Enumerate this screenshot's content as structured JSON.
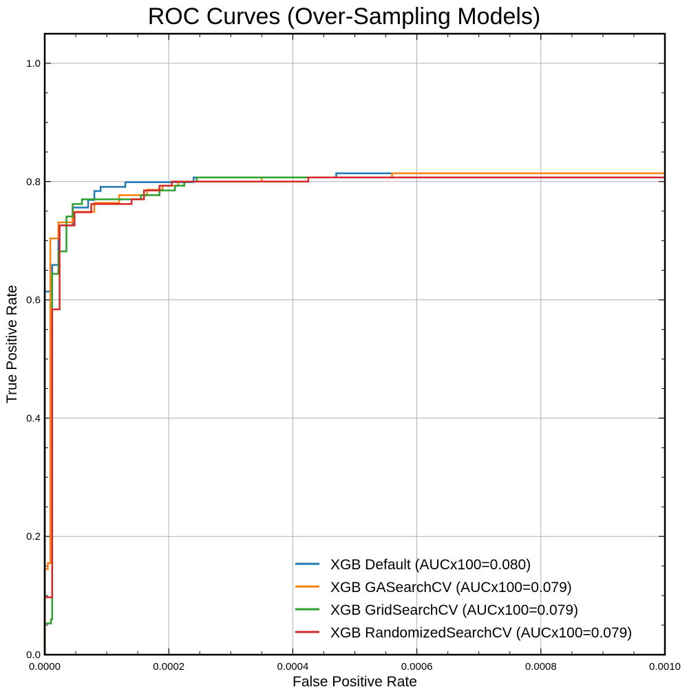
{
  "chart_data": {
    "type": "line",
    "title": "ROC Curves (Over-Sampling Models)",
    "xlabel": "False Positive Rate",
    "ylabel": "True Positive Rate",
    "xlim": [
      0,
      0.001
    ],
    "ylim": [
      0,
      1.05
    ],
    "x_ticks": [
      "0.0000",
      "0.0002",
      "0.0004",
      "0.0006",
      "0.0008",
      "0.0010"
    ],
    "y_ticks": [
      "0.0",
      "0.2",
      "0.4",
      "0.6",
      "0.8",
      "1.0"
    ],
    "grid": true,
    "legend_position": "lower right",
    "series": [
      {
        "name": "XGB Default (AUCx100=0.080)",
        "color": "#1f77b4",
        "x": [
          0,
          0,
          8e-06,
          8e-06,
          1.2e-05,
          1.2e-05,
          2.2e-05,
          2.2e-05,
          4.5e-05,
          4.5e-05,
          7e-05,
          7e-05,
          8e-05,
          8e-05,
          9e-05,
          9e-05,
          0.000105,
          0.000105,
          0.00013,
          0.00013,
          0.00024,
          0.00024,
          0.00047,
          0.00047,
          0.001
        ],
        "y": [
          0,
          0.614,
          0.614,
          0.614,
          0.614,
          0.659,
          0.659,
          0.726,
          0.726,
          0.756,
          0.756,
          0.769,
          0.769,
          0.784,
          0.784,
          0.791,
          0.791,
          0.791,
          0.791,
          0.799,
          0.799,
          0.807,
          0.807,
          0.814,
          0.814
        ]
      },
      {
        "name": "XGB GASearchCV (AUCx100=0.079)",
        "color": "#ff7f0e",
        "x": [
          0,
          0,
          5e-06,
          5e-06,
          9e-06,
          9e-06,
          2.2e-05,
          2.2e-05,
          4.5e-05,
          4.5e-05,
          8e-05,
          8e-05,
          0.00012,
          0.00012,
          0.00015,
          0.00015,
          0.000165,
          0.000165,
          0.00019,
          0.00019,
          0.000215,
          0.000215,
          0.00035,
          0.00035,
          0.00056,
          0.00056,
          0.001
        ],
        "y": [
          0,
          0.145,
          0.145,
          0.155,
          0.155,
          0.704,
          0.704,
          0.731,
          0.731,
          0.749,
          0.749,
          0.764,
          0.764,
          0.777,
          0.777,
          0.777,
          0.777,
          0.786,
          0.786,
          0.793,
          0.793,
          0.8,
          0.8,
          0.807,
          0.807,
          0.814,
          0.814
        ]
      },
      {
        "name": "XGB GridSearchCV (AUCx100=0.079)",
        "color": "#2ca02c",
        "x": [
          0,
          0,
          1e-05,
          1e-05,
          1.2e-05,
          1.2e-05,
          2.2e-05,
          2.2e-05,
          3.5e-05,
          3.5e-05,
          4.5e-05,
          4.5e-05,
          6e-05,
          6e-05,
          0.00012,
          0.00012,
          0.000155,
          0.000155,
          0.000185,
          0.000185,
          0.00021,
          0.00021,
          0.000225,
          0.000225,
          0.000245,
          0.000245,
          0.001
        ],
        "y": [
          0,
          0.053,
          0.053,
          0.06,
          0.06,
          0.644,
          0.644,
          0.682,
          0.682,
          0.741,
          0.741,
          0.762,
          0.762,
          0.77,
          0.77,
          0.77,
          0.77,
          0.777,
          0.777,
          0.785,
          0.785,
          0.793,
          0.793,
          0.8,
          0.8,
          0.807,
          0.807
        ]
      },
      {
        "name": "XGB RandomizedSearchCV (AUCx100=0.079)",
        "color": "#d62728",
        "x": [
          0,
          0,
          1e-05,
          1e-05,
          1.2e-05,
          1.2e-05,
          2.4e-05,
          2.4e-05,
          4.8e-05,
          4.8e-05,
          7.5e-05,
          7.5e-05,
          0.00014,
          0.00014,
          0.00016,
          0.00016,
          0.000185,
          0.000185,
          0.000205,
          0.000205,
          0.000425,
          0.000425,
          0.001
        ],
        "y": [
          0,
          0.097,
          0.097,
          0.097,
          0.097,
          0.584,
          0.584,
          0.726,
          0.726,
          0.748,
          0.748,
          0.762,
          0.762,
          0.77,
          0.77,
          0.785,
          0.785,
          0.793,
          0.793,
          0.8,
          0.8,
          0.807,
          0.807
        ]
      }
    ]
  }
}
